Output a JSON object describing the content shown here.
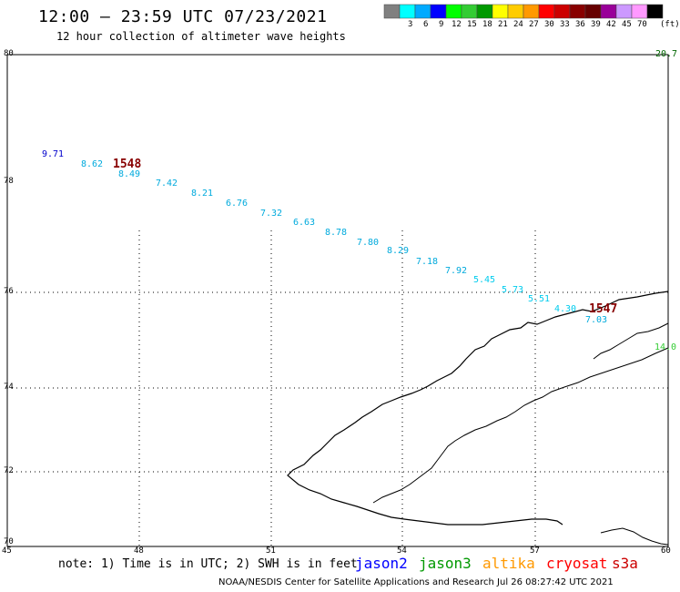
{
  "header": {
    "title": "12:00 – 23:59 UTC 07/23/2021",
    "subtitle": "12 hour collection of altimeter wave heights"
  },
  "colorbar": {
    "colors": [
      "#808080",
      "#00ffff",
      "#00aaff",
      "#0000ff",
      "#00ff00",
      "#33cc33",
      "#009900",
      "#ffff00",
      "#ffcc00",
      "#ff9900",
      "#ff0000",
      "#cc0000",
      "#880000",
      "#660000",
      "#990099",
      "#cc99ff",
      "#ff99ff",
      "#000000"
    ],
    "labels": [
      "3",
      "6",
      "9",
      "12",
      "15",
      "18",
      "21",
      "24",
      "27",
      "30",
      "33",
      "36",
      "39",
      "42",
      "45",
      "70"
    ],
    "unit": "(ft)"
  },
  "axes": {
    "lat_labels": [
      "80",
      "78",
      "76",
      "74",
      "72",
      "70"
    ],
    "lon_labels": [
      "45",
      "48",
      "51",
      "54",
      "57",
      "60"
    ]
  },
  "wave_heights": [
    {
      "text": "9.71",
      "color": "#0000cc"
    },
    {
      "text": "8.62",
      "color": "#00aadd"
    },
    {
      "text": "8.49",
      "color": "#00aadd"
    },
    {
      "text": "7.42",
      "color": "#00aadd"
    },
    {
      "text": "8.21",
      "color": "#00aadd"
    },
    {
      "text": "6.76",
      "color": "#00aadd"
    },
    {
      "text": "7.32",
      "color": "#00aadd"
    },
    {
      "text": "6.63",
      "color": "#00aadd"
    },
    {
      "text": "8.78",
      "color": "#00aadd"
    },
    {
      "text": "7.80",
      "color": "#00aadd"
    },
    {
      "text": "8.29",
      "color": "#00aadd"
    },
    {
      "text": "7.18",
      "color": "#00aadd"
    },
    {
      "text": "7.92",
      "color": "#00aadd"
    },
    {
      "text": "5.45",
      "color": "#00ccee"
    },
    {
      "text": "5.73",
      "color": "#00ccee"
    },
    {
      "text": "5.51",
      "color": "#00ccee"
    },
    {
      "text": "4.30",
      "color": "#00ccee"
    },
    {
      "text": "7.03",
      "color": "#00aadd"
    },
    {
      "text": "20.7",
      "color": "#006600"
    },
    {
      "text": "14.0",
      "color": "#33cc33"
    }
  ],
  "orbits": [
    {
      "text": "1548",
      "color": "#880000"
    },
    {
      "text": "1547",
      "color": "#880000"
    }
  ],
  "footer": {
    "note": "note: 1) Time is in UTC; 2) SWH is in feet",
    "satellites": [
      {
        "name": "jason2",
        "color": "#0000ff"
      },
      {
        "name": "jason3",
        "color": "#009900"
      },
      {
        "name": "altika",
        "color": "#ff9900"
      },
      {
        "name": "cryosat",
        "color": "#ff0000"
      },
      {
        "name": "s3a",
        "color": "#cc0000"
      }
    ],
    "credit": "NOAA/NESDIS Center for Satellite Applications and Research    Jul 26 08:27:42 UTC 2021"
  }
}
